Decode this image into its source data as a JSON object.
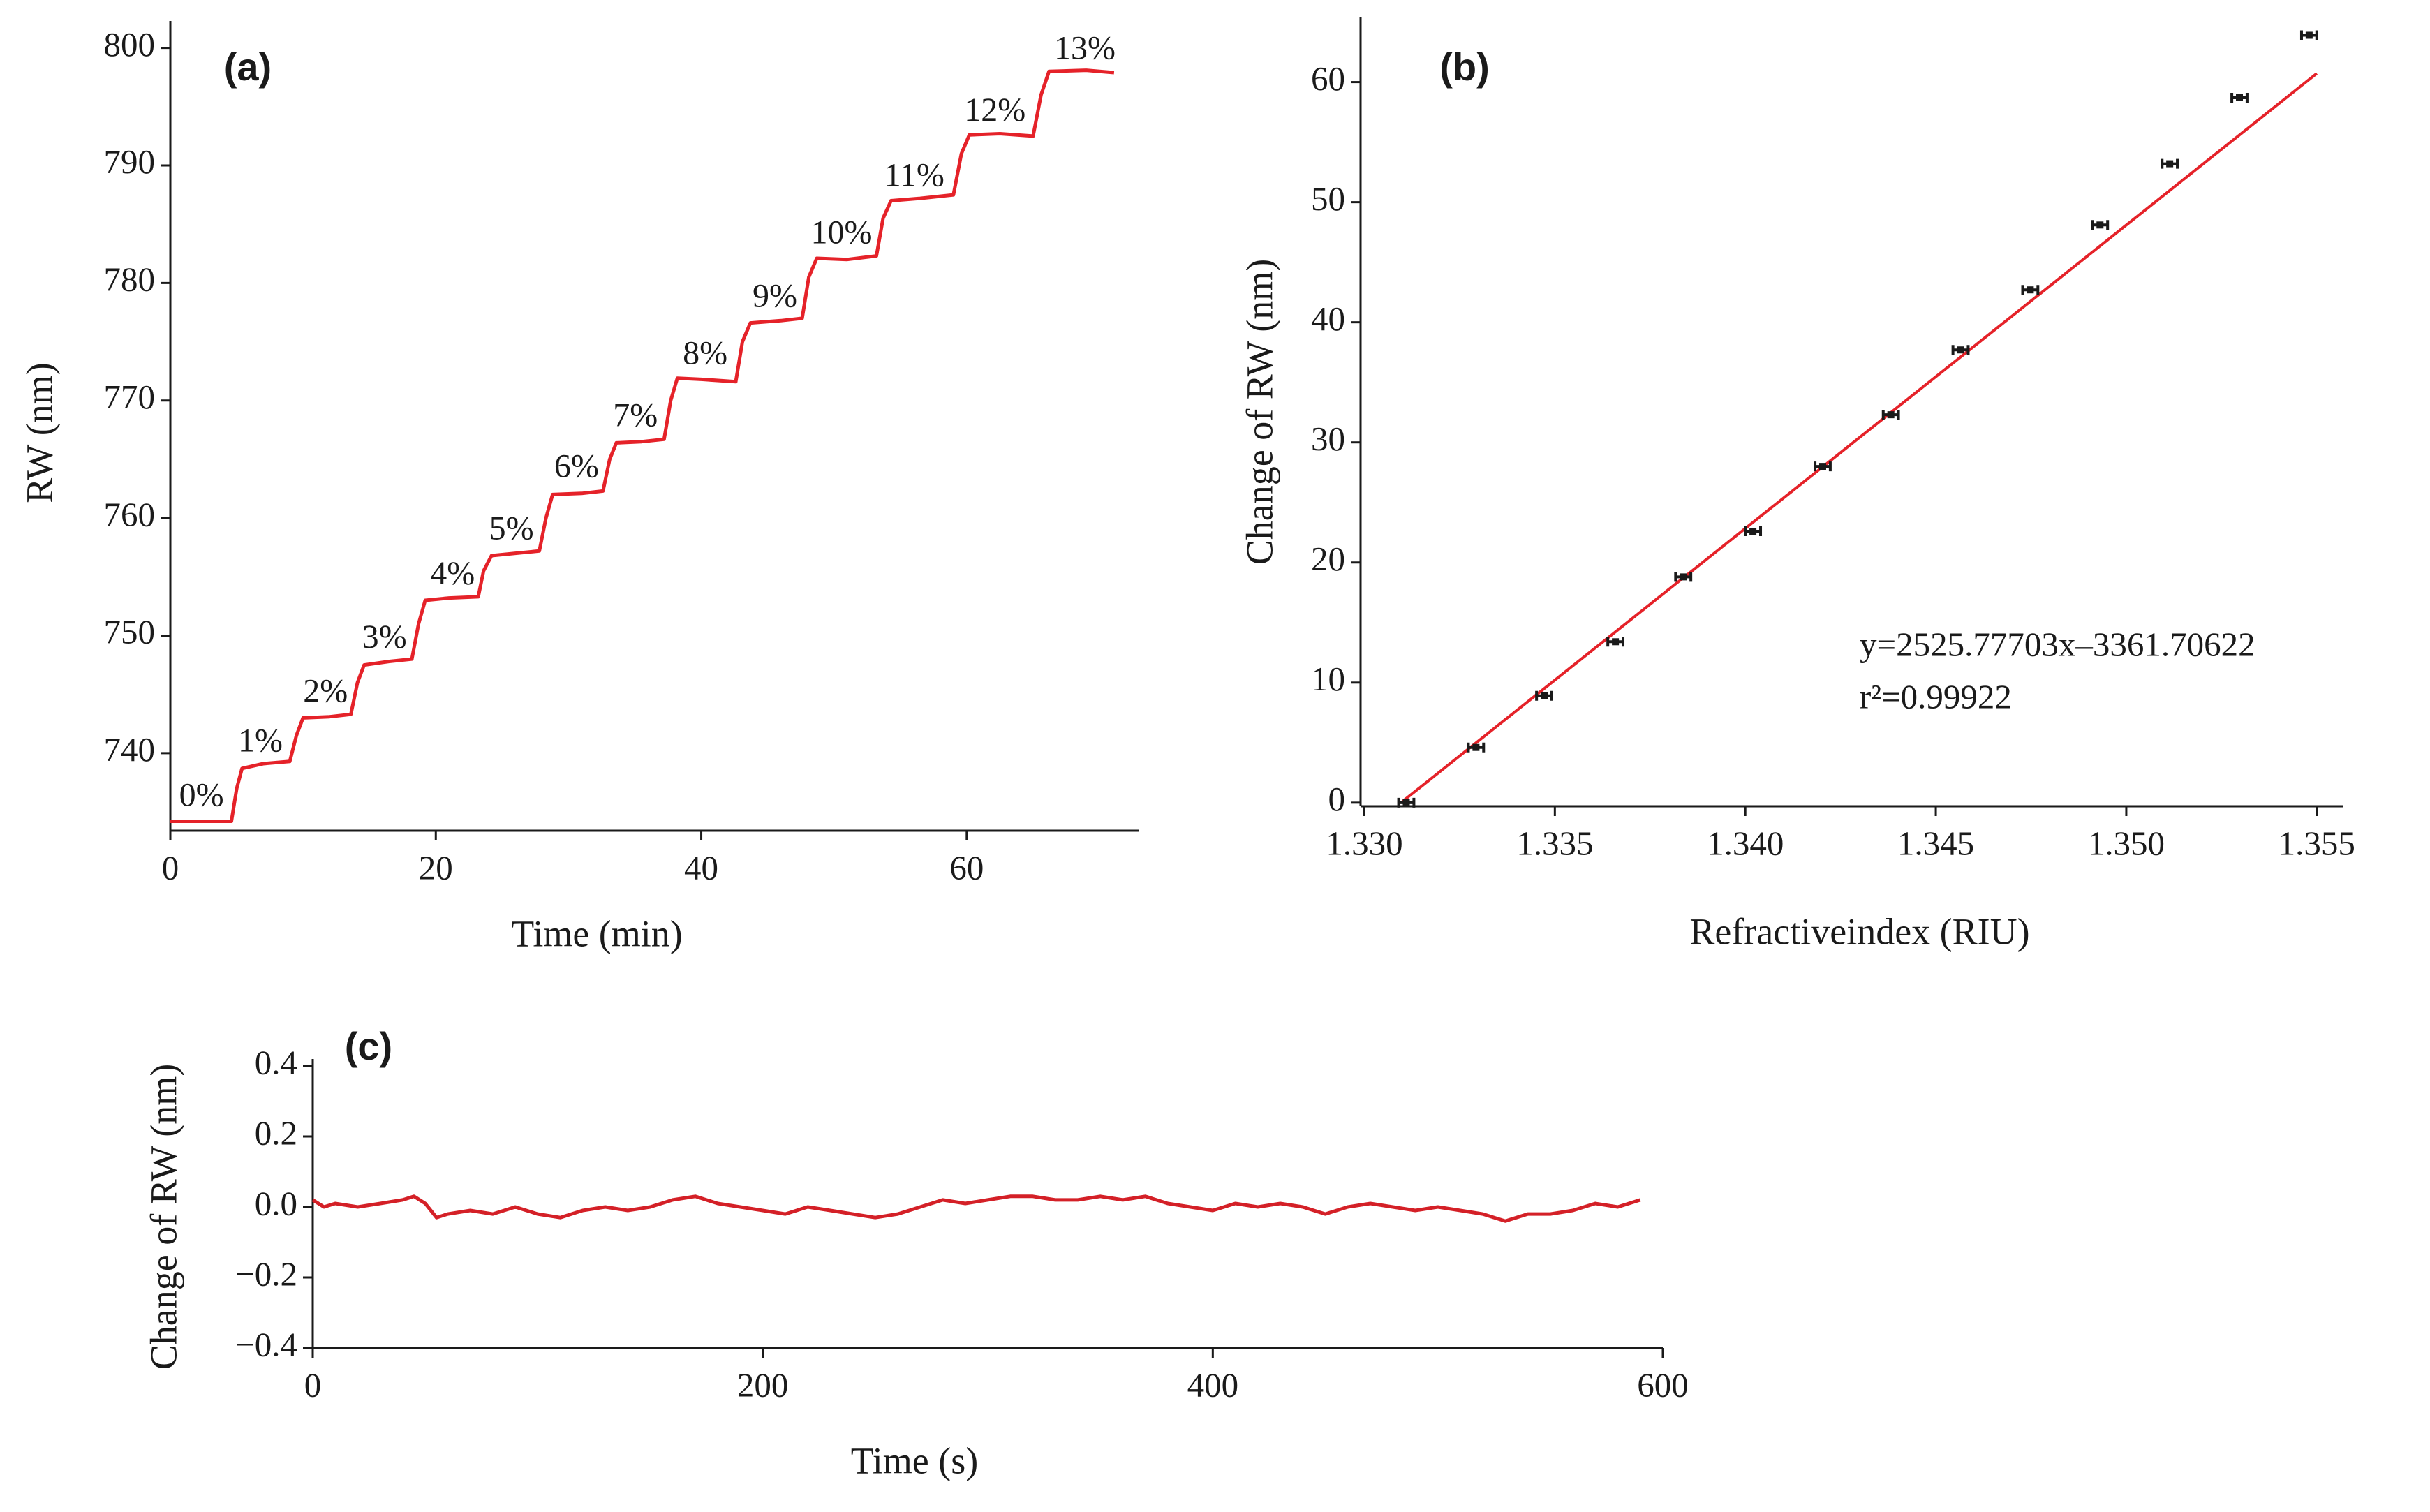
{
  "chart_data": [
    {
      "type": "line",
      "panel_label": "(a)",
      "x_label": "Time (min)",
      "y_label": "RW (nm)",
      "color": "#e52229",
      "x": [
        0,
        4.6,
        5.0,
        5.4,
        7,
        9.0,
        9.5,
        10.0,
        12,
        13.6,
        14.1,
        14.6,
        16.5,
        18.2,
        18.7,
        19.2,
        21,
        23.2,
        23.6,
        24.2,
        26,
        27.8,
        28.3,
        28.8,
        31,
        32.6,
        33.1,
        33.6,
        35.5,
        37.2,
        37.7,
        38.2,
        40,
        42.6,
        43.1,
        43.7,
        46,
        47.6,
        48.1,
        48.7,
        51,
        53.2,
        53.7,
        54.3,
        56.5,
        59.0,
        59.6,
        60.2,
        62.5,
        65.0,
        65.6,
        66.2,
        69,
        71.1
      ],
      "values": [
        734.2,
        734.2,
        737,
        738.7,
        739.1,
        739.3,
        741.5,
        743.0,
        743.1,
        743.3,
        746,
        747.5,
        747.8,
        748.0,
        751,
        753.0,
        753.2,
        753.3,
        755.5,
        756.8,
        757.0,
        757.2,
        760,
        762.0,
        762.1,
        762.3,
        765,
        766.4,
        766.5,
        766.7,
        770,
        771.9,
        771.8,
        771.6,
        775,
        776.6,
        776.8,
        777.0,
        780.5,
        782.1,
        782.0,
        782.3,
        785.5,
        787.0,
        787.2,
        787.5,
        791,
        792.6,
        792.7,
        792.5,
        796,
        798.0,
        798.1,
        797.9
      ],
      "annotations": [
        "0%",
        "1%",
        "2%",
        "3%",
        "4%",
        "5%",
        "6%",
        "7%",
        "8%",
        "9%",
        "10%",
        "11%",
        "12%",
        "13%"
      ],
      "xlim": [
        0,
        73
      ],
      "ylim": [
        733.4,
        801.7
      ],
      "xticks": [
        0,
        20,
        40,
        60
      ],
      "yticks": [
        740,
        750,
        760,
        770,
        780,
        790,
        800
      ]
    },
    {
      "type": "scatter",
      "panel_label": "(b)",
      "x_label": "Refractiveindex (RIU)",
      "y_label": "Change of RW (nm)",
      "color": "#1a1a1a",
      "x": [
        1.3311,
        1.33293,
        1.33472,
        1.33659,
        1.33837,
        1.3402,
        1.34203,
        1.34382,
        1.34565,
        1.34748,
        1.34931,
        1.35114,
        1.35297,
        1.3548
      ],
      "values": [
        0,
        4.6,
        8.9,
        13.4,
        18.8,
        22.6,
        28.0,
        32.3,
        37.7,
        42.7,
        48.1,
        53.2,
        58.7,
        63.9
      ],
      "xerr": [
        0.0002,
        0.0002,
        0.0002,
        0.0002,
        0.0002,
        0.0002,
        0.0002,
        0.0002,
        0.0002,
        0.0002,
        0.0002,
        0.0002,
        0.0002,
        0.0002
      ],
      "fit": {
        "slope": 2525.77703,
        "intercept": -3361.70622,
        "x_range": [
          1.331,
          1.355
        ],
        "color": "#e52229"
      },
      "equation": "y=2525.77703x–3361.70622",
      "r2_text": "r²=0.99922",
      "xlim": [
        1.3299,
        1.3557
      ],
      "ylim": [
        -0.3,
        64.8
      ],
      "xticks": [
        {
          "value": 1.33,
          "label": "1.330"
        },
        1.335,
        {
          "value": 1.34,
          "label": "1.340"
        },
        1.345,
        {
          "value": 1.35,
          "label": "1.350"
        },
        1.355
      ],
      "yticks": [
        0,
        10,
        20,
        30,
        40,
        50,
        60
      ]
    },
    {
      "type": "line",
      "panel_label": "(c)",
      "x_label": "Time (s)",
      "y_label": "Change of RW (nm)",
      "color": "#d42027",
      "x": [
        0,
        5,
        10,
        20,
        30,
        40,
        45,
        50,
        55,
        60,
        70,
        80,
        90,
        100,
        110,
        120,
        130,
        140,
        150,
        160,
        170,
        180,
        190,
        200,
        210,
        220,
        230,
        240,
        250,
        260,
        270,
        280,
        290,
        300,
        310,
        320,
        330,
        340,
        350,
        360,
        370,
        380,
        390,
        400,
        410,
        420,
        430,
        440,
        450,
        460,
        470,
        480,
        490,
        500,
        510,
        520,
        530,
        540,
        550,
        560,
        570,
        580,
        590
      ],
      "values": [
        0.02,
        0.0,
        0.01,
        0.0,
        0.01,
        0.02,
        0.03,
        0.01,
        -0.03,
        -0.02,
        -0.01,
        -0.02,
        0.0,
        -0.02,
        -0.03,
        -0.01,
        0.0,
        -0.01,
        0.0,
        0.02,
        0.03,
        0.01,
        0.0,
        -0.01,
        -0.02,
        0.0,
        -0.01,
        -0.02,
        -0.03,
        -0.02,
        0.0,
        0.02,
        0.01,
        0.02,
        0.03,
        0.03,
        0.02,
        0.02,
        0.03,
        0.02,
        0.03,
        0.01,
        0.0,
        -0.01,
        0.01,
        0.0,
        0.01,
        0.0,
        -0.02,
        0.0,
        0.01,
        0.0,
        -0.01,
        0.0,
        -0.01,
        -0.02,
        -0.04,
        -0.02,
        -0.02,
        -0.01,
        0.01,
        0.0,
        0.02
      ],
      "xlim": [
        0,
        600
      ],
      "ylim": [
        -0.4,
        0.4
      ],
      "xticks": [
        0,
        200,
        400,
        600
      ],
      "yticks": [
        {
          "value": -0.4,
          "label": "−0.4"
        },
        {
          "value": -0.2,
          "label": "−0.2"
        },
        {
          "value": 0,
          "label": "0.0"
        },
        0.2,
        0.4
      ]
    }
  ]
}
